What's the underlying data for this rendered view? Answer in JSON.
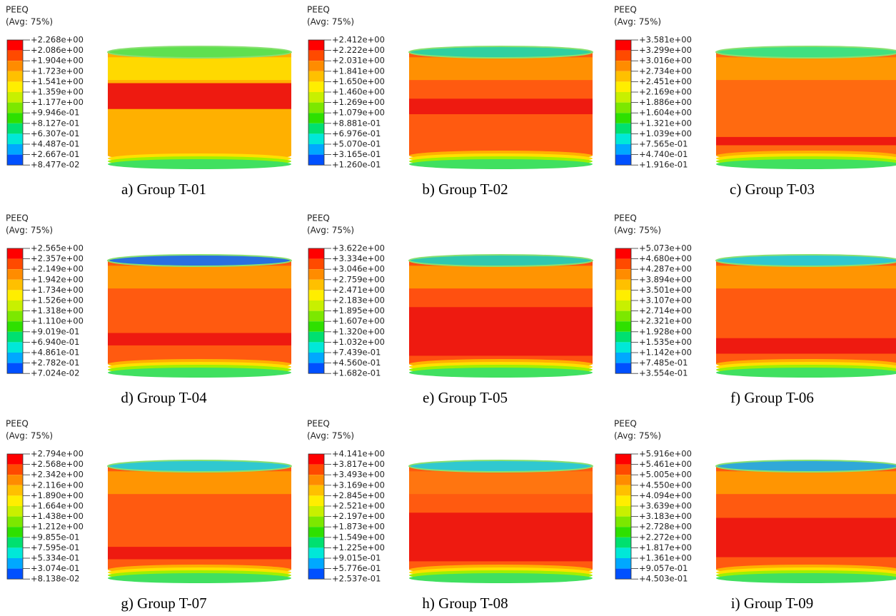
{
  "panels": [
    {
      "variable": "PEEQ",
      "averaging": "(Avg: 75%)",
      "legend": [
        "+2.268e+00",
        "+2.086e+00",
        "+1.904e+00",
        "+1.723e+00",
        "+1.541e+00",
        "+1.359e+00",
        "+1.177e+00",
        "+9.946e-01",
        "+8.127e-01",
        "+6.307e-01",
        "+4.487e-01",
        "+2.667e-01",
        "+8.477e-02"
      ],
      "caption": "a) Group T-01"
    },
    {
      "variable": "PEEQ",
      "averaging": "(Avg: 75%)",
      "legend": [
        "+2.412e+00",
        "+2.222e+00",
        "+2.031e+00",
        "+1.841e+00",
        "+1.650e+00",
        "+1.460e+00",
        "+1.269e+00",
        "+1.079e+00",
        "+8.881e-01",
        "+6.976e-01",
        "+5.070e-01",
        "+3.165e-01",
        "+1.260e-01"
      ],
      "caption": "b) Group T-02"
    },
    {
      "variable": "PEEQ",
      "averaging": "(Avg: 75%)",
      "legend": [
        "+3.581e+00",
        "+3.299e+00",
        "+3.016e+00",
        "+2.734e+00",
        "+2.451e+00",
        "+2.169e+00",
        "+1.886e+00",
        "+1.604e+00",
        "+1.321e+00",
        "+1.039e+00",
        "+7.565e-01",
        "+4.740e-01",
        "+1.916e-01"
      ],
      "caption": "c) Group T-03"
    },
    {
      "variable": "PEEQ",
      "averaging": "(Avg: 75%)",
      "legend": [
        "+2.565e+00",
        "+2.357e+00",
        "+2.149e+00",
        "+1.942e+00",
        "+1.734e+00",
        "+1.526e+00",
        "+1.318e+00",
        "+1.110e+00",
        "+9.019e-01",
        "+6.940e-01",
        "+4.861e-01",
        "+2.782e-01",
        "+7.024e-02"
      ],
      "caption": "d) Group T-04"
    },
    {
      "variable": "PEEQ",
      "averaging": "(Avg: 75%)",
      "legend": [
        "+3.622e+00",
        "+3.334e+00",
        "+3.046e+00",
        "+2.759e+00",
        "+2.471e+00",
        "+2.183e+00",
        "+1.895e+00",
        "+1.607e+00",
        "+1.320e+00",
        "+1.032e+00",
        "+7.439e-01",
        "+4.560e-01",
        "+1.682e-01"
      ],
      "caption": "e) Group T-05"
    },
    {
      "variable": "PEEQ",
      "averaging": "(Avg: 75%)",
      "legend": [
        "+5.073e+00",
        "+4.680e+00",
        "+4.287e+00",
        "+3.894e+00",
        "+3.501e+00",
        "+3.107e+00",
        "+2.714e+00",
        "+2.321e+00",
        "+1.928e+00",
        "+1.535e+00",
        "+1.142e+00",
        "+7.485e-01",
        "+3.554e-01"
      ],
      "caption": "f) Group T-06"
    },
    {
      "variable": "PEEQ",
      "averaging": "(Avg: 75%)",
      "legend": [
        "+2.794e+00",
        "+2.568e+00",
        "+2.342e+00",
        "+2.116e+00",
        "+1.890e+00",
        "+1.664e+00",
        "+1.438e+00",
        "+1.212e+00",
        "+9.855e-01",
        "+7.595e-01",
        "+5.334e-01",
        "+3.074e-01",
        "+8.138e-02"
      ],
      "caption": "g) Group T-07"
    },
    {
      "variable": "PEEQ",
      "averaging": "(Avg: 75%)",
      "legend": [
        "+4.141e+00",
        "+3.817e+00",
        "+3.493e+00",
        "+3.169e+00",
        "+2.845e+00",
        "+2.521e+00",
        "+2.197e+00",
        "+1.873e+00",
        "+1.549e+00",
        "+1.225e+00",
        "+9.015e-01",
        "+5.776e-01",
        "+2.537e-01"
      ],
      "caption": "h) Group T-08"
    },
    {
      "variable": "PEEQ",
      "averaging": "(Avg: 75%)",
      "legend": [
        "+5.916e+00",
        "+5.461e+00",
        "+5.005e+00",
        "+4.550e+00",
        "+4.094e+00",
        "+3.639e+00",
        "+3.183e+00",
        "+2.728e+00",
        "+2.272e+00",
        "+1.817e+00",
        "+1.361e+00",
        "+9.057e-01",
        "+4.503e-01"
      ],
      "caption": "i) Group T-09"
    }
  ]
}
